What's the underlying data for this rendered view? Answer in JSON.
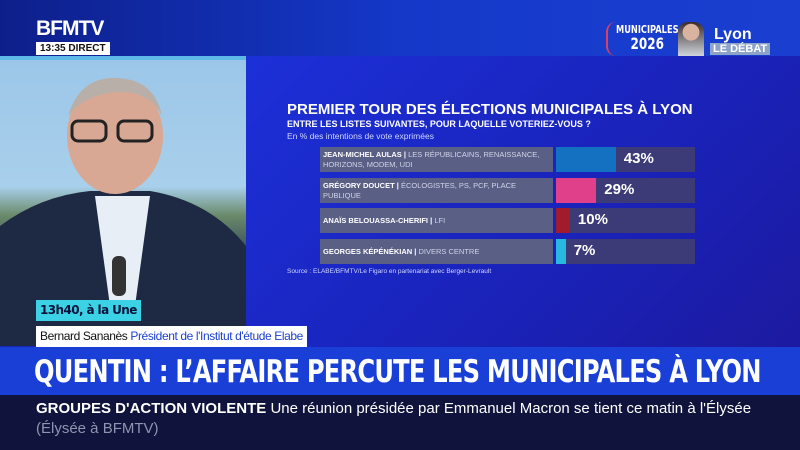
{
  "header": {
    "logo": "BFMTV",
    "time": "13:35",
    "live": "DIRECT",
    "brand_line1": "MUNICIPALES",
    "brand_line2": "2026",
    "city": "Lyon",
    "show": "LE DÉBAT"
  },
  "chart_data": {
    "type": "bar",
    "title": "PREMIER TOUR DES ÉLECTIONS MUNICIPALES À LYON",
    "question": "ENTRE LES LISTES SUIVANTES, POUR LAQUELLE VOTERIEZ-VOUS ?",
    "subtitle": "En % des intentions de vote exprimées",
    "orientation": "horizontal",
    "xlim": [
      0,
      100
    ],
    "categories": [
      "JEAN-MICHEL AULAS",
      "GRÉGORY DOUCET",
      "ANAÏS BELOUASSA-CHERIFI",
      "GEORGES KÉPÉNÉKIAN"
    ],
    "parties": [
      "LES RÉPUBLICAINS, RENAISSANCE, HORIZONS, MODEM, UDI",
      "ÉCOLOGISTES, PS, PCF, PLACE PUBLIQUE",
      "LFI",
      "DIVERS CENTRE"
    ],
    "values": [
      43,
      29,
      10,
      7
    ],
    "labels": [
      "43%",
      "29%",
      "10%",
      "7%"
    ],
    "colors": [
      "#1470c0",
      "#e0408a",
      "#a01c2c",
      "#28b8e0"
    ],
    "source": "Source : ELABE/BFMTV/Le Figaro en partenariat avec Berger-Levrault"
  },
  "lower_third": {
    "time_tag": "13h40, à la Une",
    "name": "Bernard Sananès",
    "role": "Président de l'Institut d'étude Elabe"
  },
  "headline": "QUENTIN : L’AFFAIRE PERCUTE LES MUNICIPALES À LYON",
  "ticker": {
    "topic": "GROUPES D'ACTION VIOLENTE",
    "text": "Une réunion présidée par Emmanuel Macron se tient ce matin à l'Élysée",
    "source": "(Élysée à BFMTV)"
  }
}
